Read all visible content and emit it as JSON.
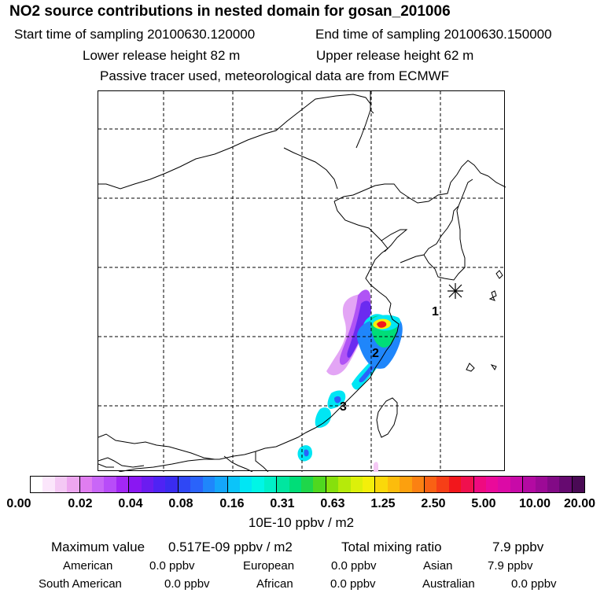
{
  "title": "NO2 source contributions in nested domain for gosan_201006",
  "header": {
    "start_label": "Start time of sampling 20100630.120000",
    "end_label": "End time of sampling 20100630.150000",
    "lower_height": "Lower release height   82 m",
    "upper_height": "Upper release height   62 m",
    "tracer_note": "Passive tracer used, meteorological data are from ECMWF"
  },
  "map": {
    "region": "East Asia (China, Korea, Taiwan)",
    "markers": [
      {
        "label": "1",
        "lon": 124.0,
        "lat": 30.7
      },
      {
        "label": "2",
        "lon": 121.0,
        "lat": 28.0
      },
      {
        "label": "3",
        "lon": 118.0,
        "lat": 24.8
      }
    ],
    "receptor": {
      "name": "gosan",
      "lon": 126.2,
      "lat": 33.3,
      "symbol": "star"
    }
  },
  "colorbar": {
    "tick_labels": [
      "0.00",
      "0.02",
      "0.04",
      "0.08",
      "0.16",
      "0.31",
      "0.63",
      "1.25",
      "2.50",
      "5.00",
      "10.00",
      "20.00"
    ],
    "colors": [
      "#ffffff",
      "#fbe6fb",
      "#f4c8f4",
      "#eda6ef",
      "#e07df0",
      "#c966f7",
      "#b84cf9",
      "#a327f6",
      "#8a17f2",
      "#6b1cf0",
      "#4f23f4",
      "#3a2cf0",
      "#2f47f5",
      "#2a63fa",
      "#1f86fb",
      "#14a6fb",
      "#0bc4f9",
      "#00e6f4",
      "#00f6e6",
      "#00f0c8",
      "#00e6a0",
      "#00dd78",
      "#1fd64a",
      "#4fd81f",
      "#86e00c",
      "#b6ea0a",
      "#dcf00a",
      "#f4ef0a",
      "#fad80a",
      "#fcbc0c",
      "#fca00e",
      "#fb8112",
      "#f96114",
      "#f63f17",
      "#f2171c",
      "#f0104e",
      "#ef0a80",
      "#ea0a9a",
      "#dc0aa6",
      "#c80aa8",
      "#b30aa2",
      "#9c0a96",
      "#820a86",
      "#660a70",
      "#4a0a55"
    ],
    "units": "10E-10 ppbv / m2"
  },
  "stats": {
    "max_label": "Maximum value",
    "max_value": "0.517E-09 ppbv / m2",
    "total_label": "Total mixing ratio",
    "total_value": "7.9 ppbv",
    "regions": [
      {
        "name": "American",
        "value": "0.0 ppbv"
      },
      {
        "name": "European",
        "value": "0.0 ppbv"
      },
      {
        "name": "Asian",
        "value": "7.9 ppbv"
      },
      {
        "name": "South American",
        "value": "0.0 ppbv"
      },
      {
        "name": "African",
        "value": "0.0 ppbv"
      },
      {
        "name": "Australian",
        "value": "0.0 ppbv"
      }
    ]
  }
}
